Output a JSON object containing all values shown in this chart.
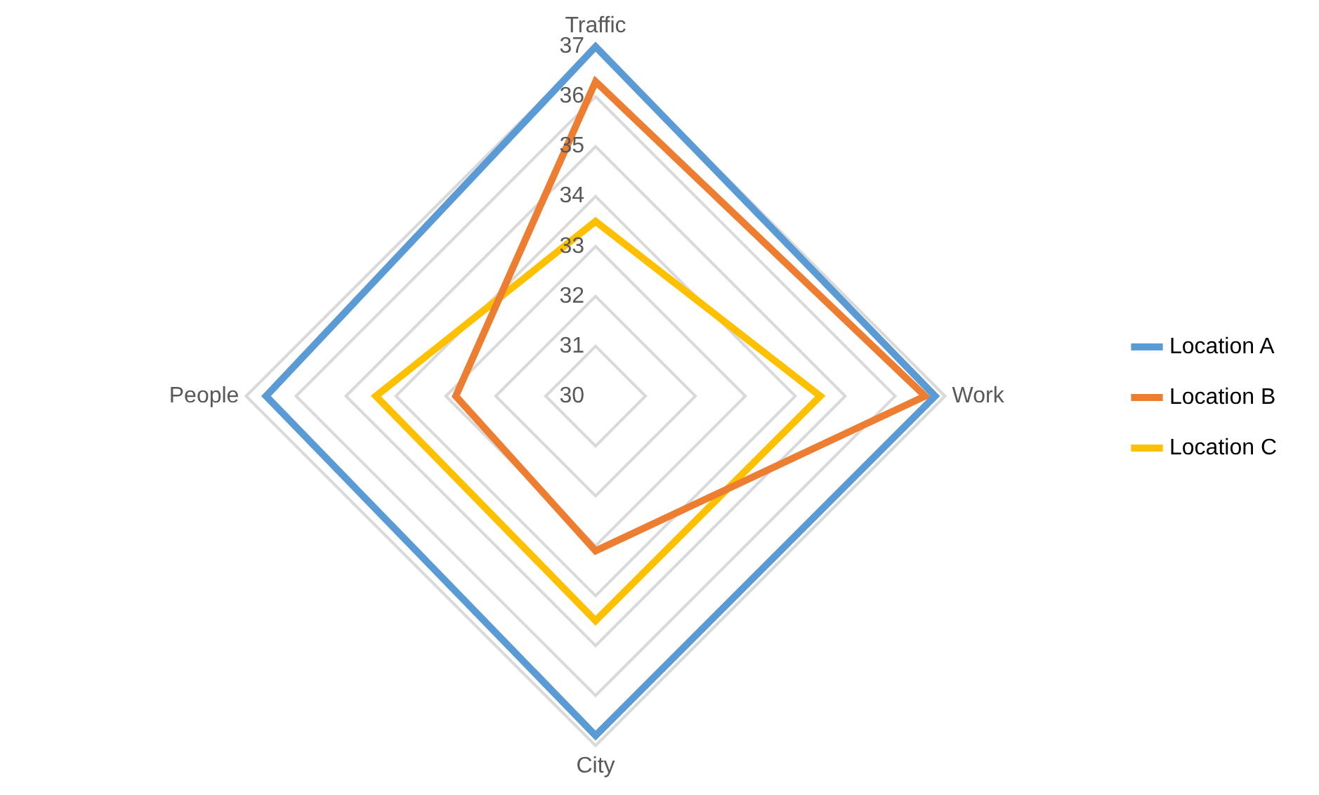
{
  "chart_data": {
    "type": "radar",
    "categories": [
      "Traffic",
      "Work",
      "City",
      "People"
    ],
    "series": [
      {
        "name": "Location A",
        "color": "#5b9bd5",
        "values": [
          37,
          36.8,
          36.8,
          36.6
        ]
      },
      {
        "name": "Location B",
        "color": "#ed7d31",
        "values": [
          36.3,
          36.6,
          33.1,
          32.8
        ]
      },
      {
        "name": "Location C",
        "color": "#ffc000",
        "values": [
          33.5,
          34.5,
          34.5,
          34.4
        ]
      }
    ],
    "ylim": [
      30,
      37
    ],
    "yticks": [
      30,
      31,
      32,
      33,
      34,
      35,
      36,
      37
    ],
    "grid": true,
    "legend": "right",
    "marker": "none"
  }
}
